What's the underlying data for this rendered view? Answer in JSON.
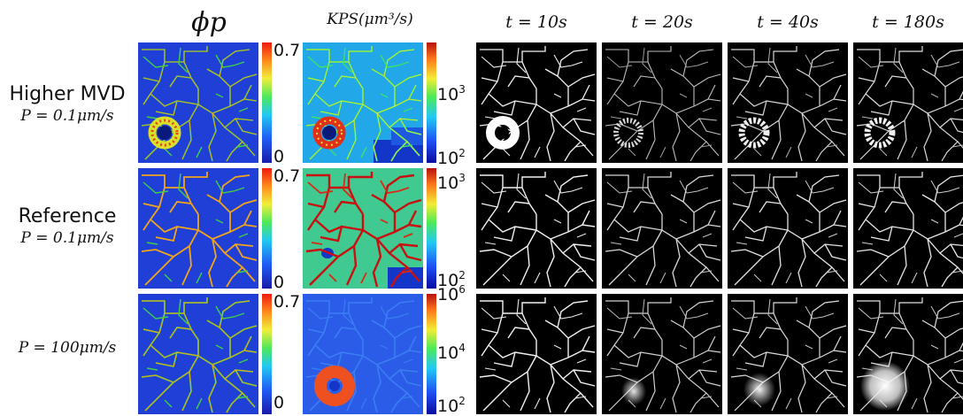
{
  "columns": {
    "phi": "ϕp",
    "kps": "KPS(μm³/s)",
    "t10": "t = 10s",
    "t20": "t = 20s",
    "t40": "t = 40s",
    "t180": "t = 180s"
  },
  "rows": [
    {
      "name": "Higher MVD",
      "equation": "P = 0.1μm/s"
    },
    {
      "name": "Reference",
      "equation": "P = 0.1μm/s"
    },
    {
      "name": "",
      "equation": "P = 100μm/s"
    }
  ],
  "phi_colorbar": {
    "max_label": "0.7",
    "min_label": "0"
  },
  "kps_colorbars": [
    {
      "upper_base": "10",
      "upper_exp": "3",
      "lower_base": "10",
      "lower_exp": "2"
    },
    {
      "upper_base": "10",
      "upper_exp": "3",
      "lower_base": "10",
      "lower_exp": "2"
    },
    {
      "upper_base": "10",
      "upper_exp": "6",
      "mid_base": "10",
      "mid_exp": "4",
      "lower_base": "10",
      "lower_exp": "2"
    }
  ],
  "colors": {
    "phi_background": "#1f3fd6",
    "phi_vessel_low": "#3fd04a",
    "phi_vessel_high": "#f2a41a",
    "kps_background_row1": "#22a8e8",
    "kps_background_row2": "#4bd36a",
    "kps_background_row3": "#2a5ce8",
    "kps_hotspot": "#ee5020",
    "concentration_background": "#000000",
    "concentration_vessel": "#f2f2f2"
  }
}
